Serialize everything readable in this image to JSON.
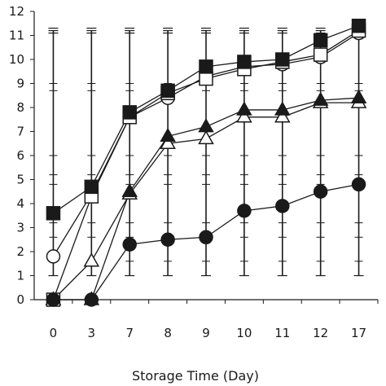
{
  "chart_data": {
    "type": "line",
    "title": "",
    "xlabel": "Storage Time (Day)",
    "ylabel": "",
    "categories": [
      "0",
      "3",
      "7",
      "8",
      "9",
      "10",
      "11",
      "12",
      "17"
    ],
    "ylim": [
      0,
      12
    ],
    "yticks": [
      "0",
      "1",
      "2",
      "3",
      "4",
      "5",
      "6",
      "7",
      "8",
      "9",
      "10",
      "11",
      "12"
    ],
    "grid": false,
    "legend": "none",
    "error_bars": {
      "low": 1.0,
      "high": 11.2
    },
    "series": [
      {
        "marker": "filled-square",
        "values": [
          3.6,
          4.7,
          7.8,
          8.7,
          9.7,
          9.9,
          10.0,
          10.8,
          11.4
        ]
      },
      {
        "marker": "open-square",
        "values": [
          0.0,
          4.3,
          7.6,
          8.6,
          9.2,
          9.6,
          9.9,
          10.2,
          11.2
        ]
      },
      {
        "marker": "open-circle",
        "values": [
          1.8,
          4.4,
          7.6,
          8.4,
          9.3,
          9.7,
          9.8,
          10.1,
          11.1
        ]
      },
      {
        "marker": "filled-triangle",
        "values": [
          0.0,
          0.0,
          4.5,
          6.8,
          7.2,
          7.9,
          7.9,
          8.3,
          8.4
        ]
      },
      {
        "marker": "open-triangle",
        "values": [
          0.0,
          1.6,
          4.4,
          6.5,
          6.7,
          7.6,
          7.6,
          8.2,
          8.2
        ]
      },
      {
        "marker": "filled-circle",
        "values": [
          0.0,
          0.0,
          2.3,
          2.5,
          2.6,
          3.7,
          3.9,
          4.5,
          4.8
        ]
      }
    ],
    "colors": {
      "ink": "#1a1a1a",
      "paper": "#ffffff"
    }
  }
}
